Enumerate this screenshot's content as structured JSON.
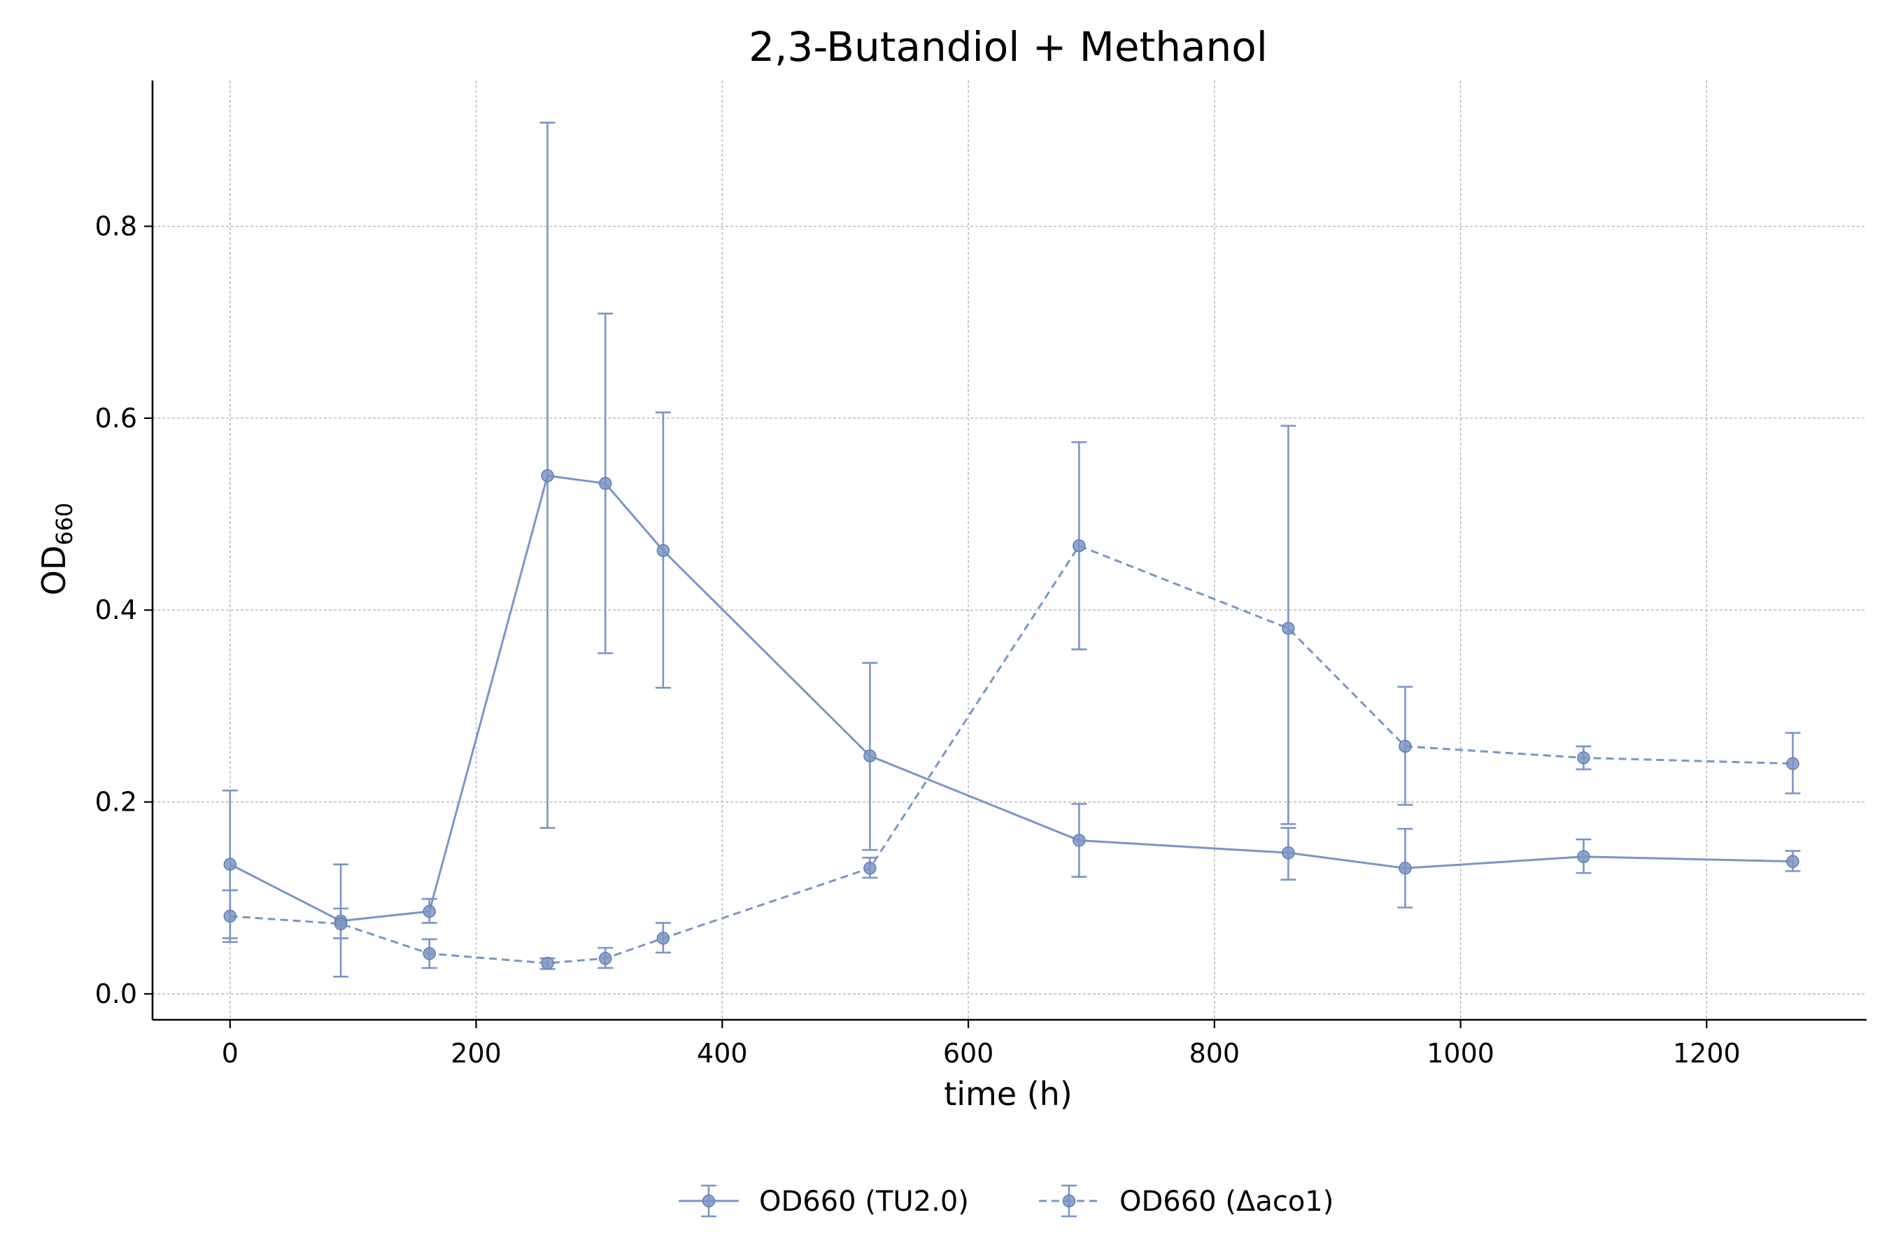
{
  "chart_data": {
    "type": "line",
    "title": "2,3-Butandiol + Methanol",
    "xlabel": "time (h)",
    "ylabel": {
      "main": "OD",
      "sub": "660"
    },
    "xlim": [
      -63,
      1330
    ],
    "ylim": [
      -0.027,
      0.952
    ],
    "xticks": [
      0,
      200,
      400,
      600,
      800,
      1000,
      1200
    ],
    "yticks": [
      0.0,
      0.2,
      0.4,
      0.6,
      0.8
    ],
    "ytick_labels": [
      "0.0",
      "0.2",
      "0.4",
      "0.6",
      "0.8"
    ],
    "grid": true,
    "legend_position": "bottom-center",
    "colors": {
      "series": "#7b96c4",
      "grid": "#b0b0b0",
      "axis": "#000000"
    },
    "series": [
      {
        "name": "OD660 (TU2.0)",
        "line_style": "solid",
        "x": [
          0,
          90,
          162,
          258,
          305,
          352,
          520,
          690,
          860,
          955,
          1100,
          1270
        ],
        "y": [
          0.135,
          0.076,
          0.086,
          0.54,
          0.532,
          0.462,
          0.248,
          0.16,
          0.147,
          0.131,
          0.143,
          0.138
        ],
        "err_low": [
          0.058,
          0.018,
          0.074,
          0.173,
          0.355,
          0.319,
          0.15,
          0.122,
          0.119,
          0.09,
          0.126,
          0.128
        ],
        "err_high": [
          0.212,
          0.135,
          0.099,
          0.908,
          0.709,
          0.606,
          0.345,
          0.198,
          0.173,
          0.172,
          0.161,
          0.149
        ]
      },
      {
        "name": "OD660 (Δaco1)",
        "line_style": "dashed",
        "x": [
          0,
          90,
          162,
          258,
          305,
          352,
          520,
          690,
          860,
          955,
          1100,
          1270
        ],
        "y": [
          0.081,
          0.073,
          0.042,
          0.032,
          0.037,
          0.058,
          0.131,
          0.467,
          0.381,
          0.258,
          0.246,
          0.24
        ],
        "err_low": [
          0.054,
          0.058,
          0.027,
          0.026,
          0.027,
          0.043,
          0.121,
          0.359,
          0.177,
          0.197,
          0.234,
          0.209
        ],
        "err_high": [
          0.108,
          0.089,
          0.057,
          0.037,
          0.048,
          0.074,
          0.142,
          0.575,
          0.592,
          0.32,
          0.258,
          0.272
        ]
      }
    ]
  }
}
